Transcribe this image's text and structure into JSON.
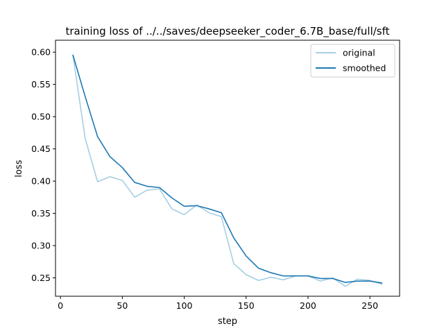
{
  "chart_data": {
    "type": "line",
    "title": "training loss of ../../saves/deepseeker_coder_6.7B_base/full/sft",
    "xlabel": "step",
    "ylabel": "loss",
    "xlim": [
      -4,
      274
    ],
    "ylim": [
      0.2215,
      0.6185
    ],
    "xticks": [
      0,
      50,
      100,
      150,
      200,
      250
    ],
    "yticks": [
      0.25,
      0.3,
      0.35,
      0.4,
      0.45,
      0.5,
      0.55,
      0.6
    ],
    "grid": false,
    "legend_position": "top-right",
    "x": [
      10,
      20,
      30,
      40,
      50,
      60,
      70,
      80,
      90,
      100,
      110,
      120,
      130,
      140,
      150,
      160,
      170,
      180,
      190,
      200,
      210,
      220,
      230,
      240,
      250,
      260
    ],
    "series": [
      {
        "name": "original",
        "color": "#a6cee3",
        "values": [
          0.596,
          0.466,
          0.399,
          0.407,
          0.401,
          0.375,
          0.386,
          0.388,
          0.357,
          0.348,
          0.363,
          0.351,
          0.345,
          0.272,
          0.255,
          0.246,
          0.251,
          0.247,
          0.253,
          0.253,
          0.245,
          0.25,
          0.237,
          0.248,
          0.246,
          0.24
        ]
      },
      {
        "name": "smoothed",
        "color": "#1f78b4",
        "values": [
          0.596,
          0.531,
          0.469,
          0.438,
          0.421,
          0.398,
          0.392,
          0.39,
          0.374,
          0.361,
          0.362,
          0.357,
          0.351,
          0.312,
          0.284,
          0.265,
          0.258,
          0.253,
          0.253,
          0.253,
          0.249,
          0.249,
          0.243,
          0.245,
          0.245,
          0.242
        ]
      }
    ]
  }
}
